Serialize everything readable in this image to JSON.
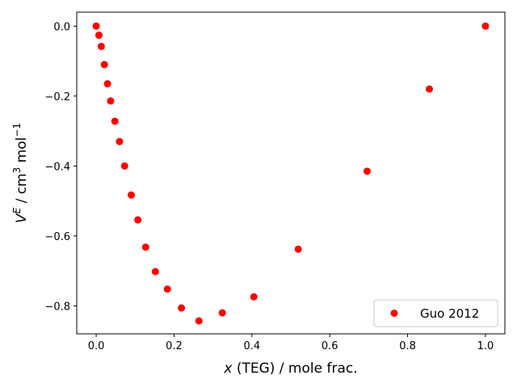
{
  "chart_data": {
    "type": "scatter",
    "xlabel_italic": "x",
    "xlabel_rest": " (TEG) / mole frac.",
    "ylabel": "V^E / cm^3 mol^-1",
    "xlim": [
      -0.05,
      1.05
    ],
    "ylim": [
      -0.88,
      0.04
    ],
    "xticks": [
      0.0,
      0.2,
      0.4,
      0.6,
      0.8,
      1.0
    ],
    "xtick_labels": [
      "0.0",
      "0.2",
      "0.4",
      "0.6",
      "0.8",
      "1.0"
    ],
    "yticks": [
      0.0,
      -0.2,
      -0.4,
      -0.6,
      -0.8
    ],
    "ytick_labels": [
      "0.0",
      "−0.2",
      "−0.4",
      "−0.6",
      "−0.8"
    ],
    "legend_position": "lower-right",
    "grid": false,
    "series": [
      {
        "name": "Guo 2012",
        "color": "#ff0000",
        "marker": "circle",
        "points": [
          {
            "x": 0.0,
            "y": 0.0
          },
          {
            "x": 0.007,
            "y": -0.026
          },
          {
            "x": 0.013,
            "y": -0.058
          },
          {
            "x": 0.021,
            "y": -0.11
          },
          {
            "x": 0.029,
            "y": -0.165
          },
          {
            "x": 0.037,
            "y": -0.214
          },
          {
            "x": 0.048,
            "y": -0.272
          },
          {
            "x": 0.06,
            "y": -0.33
          },
          {
            "x": 0.073,
            "y": -0.4
          },
          {
            "x": 0.09,
            "y": -0.483
          },
          {
            "x": 0.107,
            "y": -0.554
          },
          {
            "x": 0.127,
            "y": -0.632
          },
          {
            "x": 0.152,
            "y": -0.702
          },
          {
            "x": 0.183,
            "y": -0.752
          },
          {
            "x": 0.219,
            "y": -0.806
          },
          {
            "x": 0.264,
            "y": -0.843
          },
          {
            "x": 0.324,
            "y": -0.82
          },
          {
            "x": 0.405,
            "y": -0.774
          },
          {
            "x": 0.519,
            "y": -0.638
          },
          {
            "x": 0.696,
            "y": -0.415
          },
          {
            "x": 0.856,
            "y": -0.18
          },
          {
            "x": 1.0,
            "y": 0.0
          }
        ]
      }
    ]
  }
}
